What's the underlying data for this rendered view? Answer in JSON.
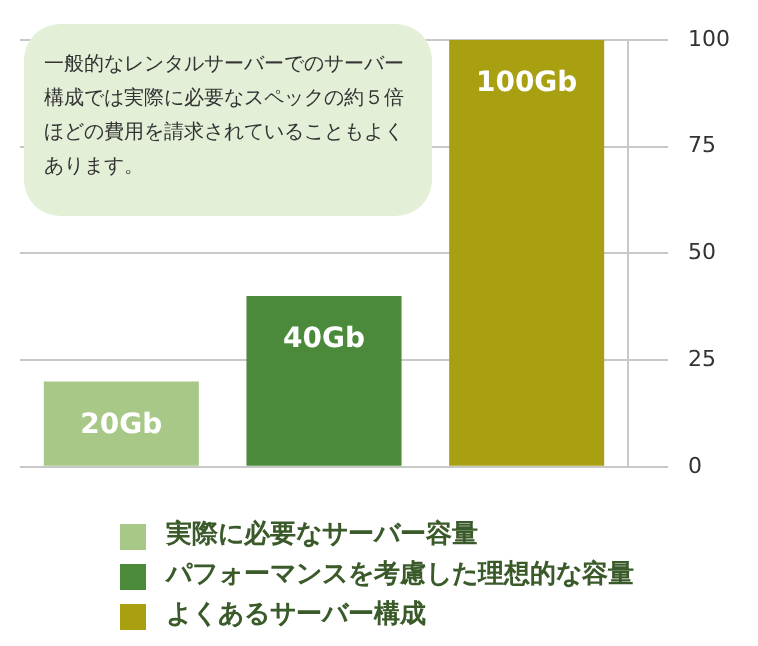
{
  "chart_data": {
    "type": "bar",
    "categories": [
      null,
      null,
      null
    ],
    "series": [
      {
        "name": "実際に必要なサーバー容量",
        "color": "#a8c888",
        "values": [
          20,
          null,
          null
        ],
        "value_labels": [
          "20Gb",
          null,
          null
        ]
      },
      {
        "name": "パフォーマンスを考慮した理想的な容量",
        "color": "#4a8a3a",
        "values": [
          null,
          40,
          null
        ],
        "value_labels": [
          null,
          "40Gb",
          null
        ]
      },
      {
        "name": "よくあるサーバー構成",
        "color": "#a8a010",
        "values": [
          null,
          null,
          100
        ],
        "value_labels": [
          null,
          null,
          "100Gb"
        ]
      }
    ],
    "ylim": [
      0,
      100
    ],
    "yticks": [
      0,
      25,
      50,
      75,
      100
    ],
    "grid": "y",
    "legend": "bottom",
    "annotations": [
      "一般的なレンタルサーバーでのサーバー構成では実際に必要なスペックの約５倍ほどの費用を請求されていることもよくあります。"
    ]
  }
}
